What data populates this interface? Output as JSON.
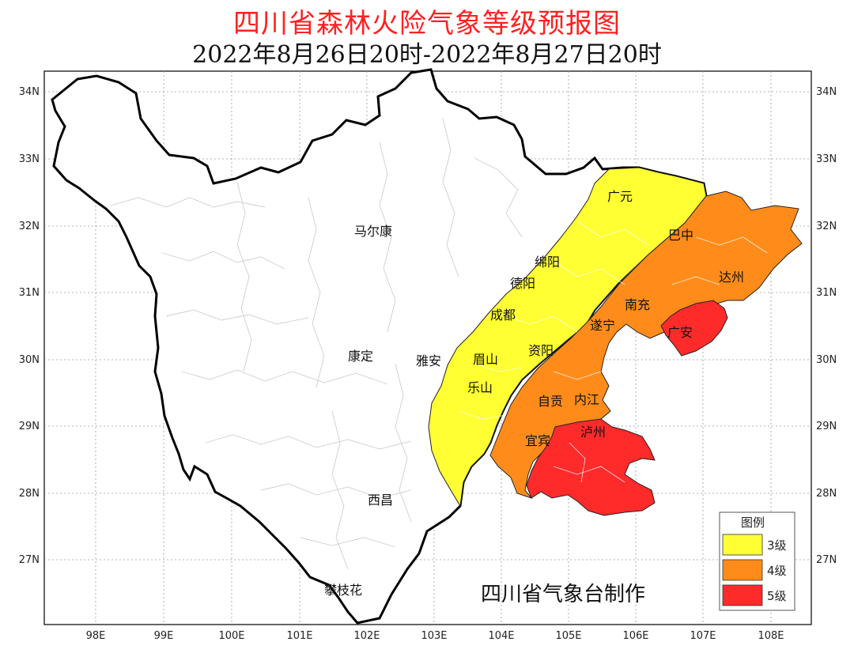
{
  "title": "四川省森林火险气象等级预报图",
  "subtitle": "2022年8月26日20时-2022年8月27日20时",
  "credit": "四川省气象台制作",
  "axes": {
    "lon_labels": [
      "98E",
      "99E",
      "100E",
      "101E",
      "102E",
      "103E",
      "104E",
      "105E",
      "106E",
      "107E",
      "108E"
    ],
    "lat_labels": [
      "34N",
      "33N",
      "32N",
      "31N",
      "30N",
      "29N",
      "28N",
      "27N"
    ]
  },
  "legend": {
    "title": "图例",
    "items": [
      {
        "label": "3级",
        "color": "#ffff33"
      },
      {
        "label": "4级",
        "color": "#ff8c1a"
      },
      {
        "label": "5级",
        "color": "#ff2a2a"
      }
    ]
  },
  "cities": [
    {
      "name": "马尔康",
      "level": "none"
    },
    {
      "name": "康定",
      "level": "none"
    },
    {
      "name": "雅安",
      "level": "none"
    },
    {
      "name": "西昌",
      "level": "none"
    },
    {
      "name": "攀枝花",
      "level": "none"
    },
    {
      "name": "广元",
      "level": "3级"
    },
    {
      "name": "绵阳",
      "level": "3级"
    },
    {
      "name": "德阳",
      "level": "3级"
    },
    {
      "name": "成都",
      "level": "3级"
    },
    {
      "name": "眉山",
      "level": "3级"
    },
    {
      "name": "乐山",
      "level": "3级"
    },
    {
      "name": "资阳",
      "level": "4级"
    },
    {
      "name": "巴中",
      "level": "4级"
    },
    {
      "name": "达州",
      "level": "4级"
    },
    {
      "name": "南充",
      "level": "4级"
    },
    {
      "name": "遂宁",
      "level": "4级"
    },
    {
      "name": "自贡",
      "level": "4级"
    },
    {
      "name": "内江",
      "level": "4级"
    },
    {
      "name": "宜宾",
      "level": "4级"
    },
    {
      "name": "广安",
      "level": "5级"
    },
    {
      "name": "泸州",
      "level": "5级"
    }
  ]
}
